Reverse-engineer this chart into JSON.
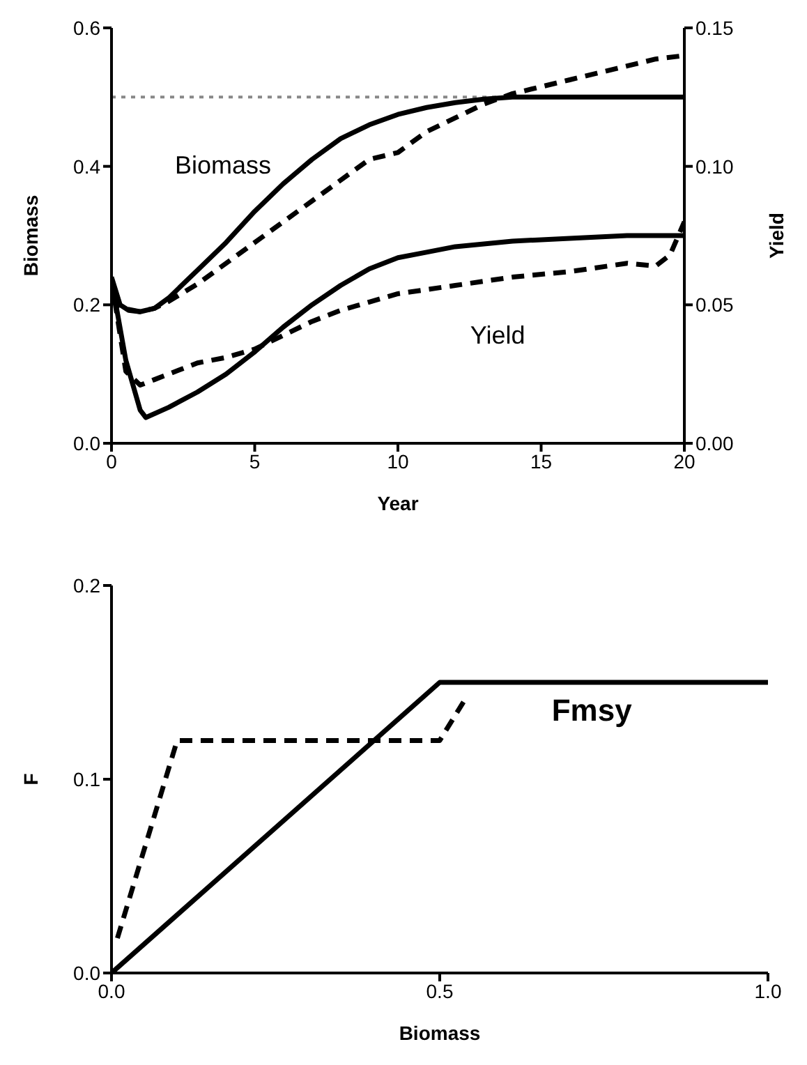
{
  "chart_data": [
    {
      "type": "line",
      "xlabel": "Year",
      "ylabel": "Biomass",
      "y2label": "Yield",
      "xlim": [
        0,
        20
      ],
      "xticks": [
        0,
        5,
        10,
        15,
        20
      ],
      "ylim": [
        0,
        0.6
      ],
      "yticks": [
        {
          "value": 0,
          "label": "0.0"
        },
        0.2,
        0.4,
        0.6
      ],
      "y2lim": [
        0,
        0.15
      ],
      "y2ticks": [
        {
          "value": 0,
          "label": "0.00"
        },
        {
          "value": 0.05,
          "label": "0.05"
        },
        {
          "value": 0.1,
          "label": "0.10"
        },
        {
          "value": 0.15,
          "label": "0.15"
        }
      ],
      "grid": false,
      "series": [
        {
          "color": "#000000",
          "line_style": "solid",
          "x": [
            0,
            0.3,
            0.6,
            1,
            1.5,
            2,
            3,
            4,
            5,
            6,
            7,
            8,
            9,
            10,
            11,
            12,
            13,
            14,
            16,
            18,
            20
          ],
          "values": [
            0.24,
            0.2,
            0.192,
            0.19,
            0.195,
            0.21,
            0.25,
            0.29,
            0.335,
            0.375,
            0.41,
            0.44,
            0.46,
            0.475,
            0.485,
            0.492,
            0.497,
            0.5,
            0.5,
            0.5,
            0.5
          ]
        },
        {
          "color": "#000000",
          "line_style": "dashed",
          "x": [
            0,
            0.3,
            1,
            1.5,
            2,
            3,
            4,
            5,
            6,
            7,
            8,
            9,
            10,
            11,
            12,
            13,
            14,
            15,
            16,
            17,
            18,
            19,
            20
          ],
          "values": [
            0.21,
            0.196,
            0.19,
            0.195,
            0.205,
            0.23,
            0.26,
            0.29,
            0.32,
            0.35,
            0.38,
            0.41,
            0.42,
            0.45,
            0.47,
            0.49,
            0.505,
            0.515,
            0.525,
            0.535,
            0.545,
            0.555,
            0.56
          ]
        },
        {
          "color": "#000000",
          "line_style": "solid",
          "axis": "y2",
          "x": [
            0,
            0.5,
            1,
            1.2,
            2,
            3,
            4,
            5,
            6,
            7,
            8,
            9,
            10,
            11,
            12,
            14,
            16,
            18,
            20
          ],
          "values": [
            0.059,
            0.03,
            0.012,
            0.0093,
            0.013,
            0.0185,
            0.025,
            0.033,
            0.042,
            0.05,
            0.057,
            0.063,
            0.067,
            0.069,
            0.071,
            0.073,
            0.074,
            0.075,
            0.075
          ]
        },
        {
          "color": "#000000",
          "line_style": "dashed",
          "axis": "y2",
          "x": [
            0,
            0.5,
            1,
            1.5,
            2,
            3,
            4,
            5,
            6,
            7,
            8,
            9,
            10,
            12,
            14,
            16,
            18,
            19,
            19.5,
            20
          ],
          "values": [
            0.059,
            0.026,
            0.021,
            0.023,
            0.025,
            0.029,
            0.031,
            0.034,
            0.039,
            0.044,
            0.048,
            0.051,
            0.054,
            0.057,
            0.06,
            0.062,
            0.065,
            0.064,
            0.068,
            0.08
          ]
        }
      ],
      "ref_lines": [
        {
          "axis": "y",
          "value": 0.5,
          "color": "#888888",
          "line_style": "dotted"
        }
      ],
      "annotations": [
        "Biomass",
        "Yield"
      ]
    },
    {
      "type": "line",
      "xlabel": "Biomass",
      "ylabel": "F",
      "xlim": [
        0,
        1
      ],
      "xticks": [
        {
          "value": 0,
          "label": "0.0"
        },
        0.5,
        {
          "value": 1,
          "label": "1.0"
        }
      ],
      "ylim": [
        0,
        0.2
      ],
      "yticks": [
        {
          "value": 0,
          "label": "0.0"
        },
        0.1,
        0.2
      ],
      "grid": false,
      "series": [
        {
          "color": "#000000",
          "line_style": "solid",
          "x": [
            0,
            0.5,
            1
          ],
          "values": [
            0,
            0.15,
            0.15
          ]
        },
        {
          "color": "#000000",
          "line_style": "dashed",
          "x": [
            0.009,
            0.1,
            0.5,
            0.54
          ],
          "values": [
            0.018,
            0.12,
            0.12,
            0.142
          ]
        }
      ],
      "annotations": [
        "Fmsy"
      ]
    }
  ]
}
